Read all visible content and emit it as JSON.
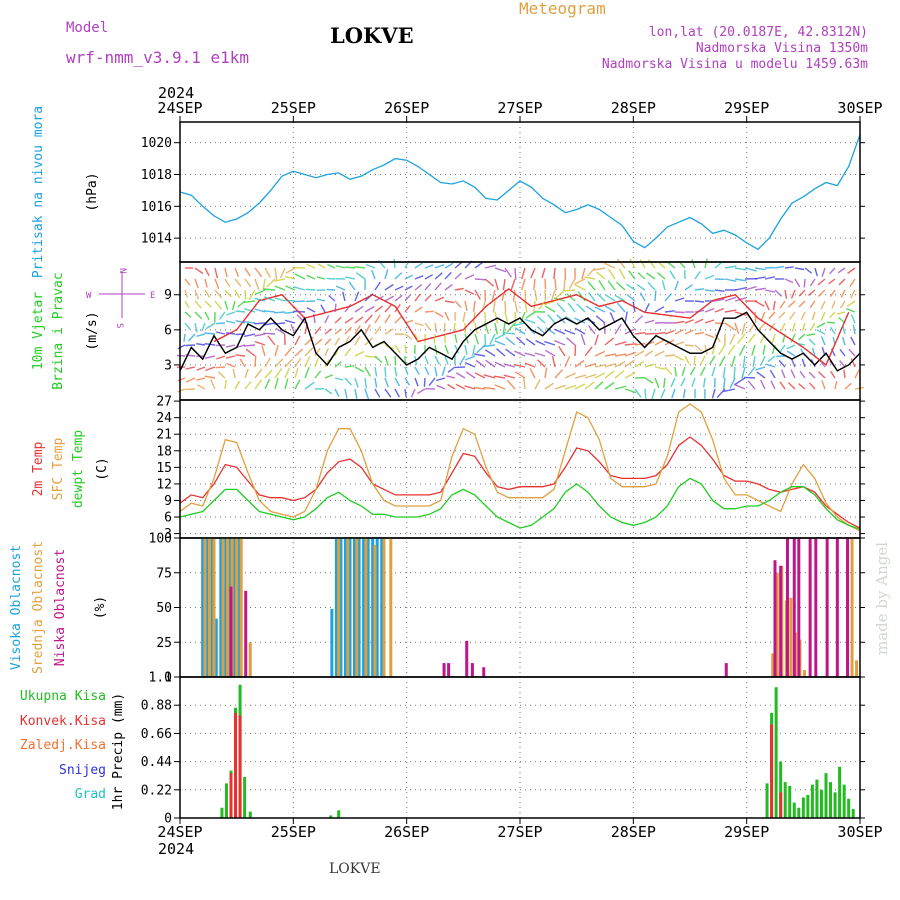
{
  "header": {
    "model_label": "Model",
    "model_name": "wrf-nmm_v3.9.1 e1km",
    "station": "LOKVE",
    "meteogram": "Meteogram",
    "lonlat": "lon,lat (20.0187E, 42.8312N)",
    "elevation": "Nadmorska Visina 1350m",
    "model_elevation": "Nadmorska Visina u modelu 1459.63m",
    "credit": "made by Angel",
    "footer": "LOKVE"
  },
  "colors": {
    "pressure": "#1ca2df",
    "wind_speed": "#000000",
    "wind_gust": "#e83030",
    "t2m": "#e83030",
    "sfc": "#e0a040",
    "dewpt": "#22cc22",
    "high_cloud": "#1ca2df",
    "mid_cloud": "#e0a040",
    "low_cloud": "#c0158a",
    "total_precip": "#22bb22",
    "conv_precip": "#e83030",
    "frz_precip": "#f07030",
    "snow": "#3030e0",
    "hail": "#20c0c0",
    "header_purple": "#b040c0",
    "header_orange": "#e0a040"
  },
  "chart_data": [
    {
      "type": "line",
      "panel": "pressure",
      "ylabel": [
        "Pritisak na nivou mora",
        "(hPa)"
      ],
      "x_axis": {
        "year": "2024",
        "ticks": [
          "24SEP",
          "25SEP",
          "26SEP",
          "27SEP",
          "28SEP",
          "29SEP",
          "30SEP"
        ],
        "x_unit": "days since 24SEP 00Z",
        "xlim": [
          0,
          6
        ]
      },
      "yticks": [
        1014,
        1016,
        1018,
        1020
      ],
      "ylim": [
        1012.5,
        1021.3
      ],
      "grid": true,
      "series": [
        {
          "color_key": "pressure",
          "x": [
            0,
            0.1,
            0.2,
            0.3,
            0.4,
            0.5,
            0.6,
            0.7,
            0.8,
            0.9,
            1.0,
            1.1,
            1.2,
            1.3,
            1.4,
            1.5,
            1.6,
            1.7,
            1.8,
            1.9,
            2.0,
            2.1,
            2.2,
            2.3,
            2.4,
            2.5,
            2.6,
            2.7,
            2.8,
            2.9,
            3.0,
            3.1,
            3.2,
            3.3,
            3.4,
            3.5,
            3.6,
            3.7,
            3.8,
            3.9,
            4.0,
            4.1,
            4.2,
            4.3,
            4.4,
            4.5,
            4.6,
            4.7,
            4.8,
            4.9,
            5.0,
            5.1,
            5.2,
            5.3,
            5.4,
            5.5,
            5.6,
            5.7,
            5.8,
            5.9,
            6.0
          ],
          "y": [
            1016.9,
            1016.7,
            1016.0,
            1015.4,
            1015.0,
            1015.2,
            1015.6,
            1016.2,
            1017.0,
            1017.9,
            1018.2,
            1018.0,
            1017.8,
            1018.0,
            1018.1,
            1017.7,
            1017.9,
            1018.3,
            1018.6,
            1019.0,
            1018.9,
            1018.5,
            1018.0,
            1017.5,
            1017.4,
            1017.6,
            1017.2,
            1016.5,
            1016.4,
            1017.0,
            1017.6,
            1017.2,
            1016.5,
            1016.1,
            1015.6,
            1015.8,
            1016.1,
            1015.8,
            1015.3,
            1014.8,
            1013.8,
            1013.4,
            1014.0,
            1014.7,
            1015.0,
            1015.3,
            1014.9,
            1014.3,
            1014.5,
            1014.2,
            1013.7,
            1013.3,
            1014.0,
            1015.2,
            1016.2,
            1016.6,
            1017.1,
            1017.5,
            1017.3,
            1018.5,
            1020.5
          ]
        }
      ]
    },
    {
      "type": "line",
      "panel": "wind",
      "ylabel": [
        "10m Vjetar",
        "Brzina i Pravac",
        "(m/s)"
      ],
      "compass": {
        "n": "N",
        "s": "S",
        "e": "E",
        "w": "W"
      },
      "yticks": [
        3,
        6,
        9
      ],
      "ylim": [
        0,
        11.8
      ],
      "grid": true,
      "series": [
        {
          "color_key": "wind_speed",
          "x": [
            0,
            0.1,
            0.2,
            0.3,
            0.4,
            0.5,
            0.6,
            0.7,
            0.8,
            0.9,
            1.0,
            1.1,
            1.2,
            1.3,
            1.4,
            1.5,
            1.6,
            1.7,
            1.8,
            1.9,
            2.0,
            2.1,
            2.2,
            2.3,
            2.4,
            2.5,
            2.6,
            2.7,
            2.8,
            2.9,
            3.0,
            3.1,
            3.2,
            3.3,
            3.4,
            3.5,
            3.6,
            3.7,
            3.8,
            3.9,
            4.0,
            4.1,
            4.2,
            4.3,
            4.4,
            4.5,
            4.6,
            4.7,
            4.8,
            4.9,
            5.0,
            5.1,
            5.2,
            5.3,
            5.4,
            5.5,
            5.6,
            5.7,
            5.8,
            5.9,
            6.0
          ],
          "y": [
            2.5,
            4.5,
            3.5,
            5.5,
            4.0,
            4.5,
            6.5,
            6.0,
            7.0,
            6.0,
            5.5,
            7.0,
            4.0,
            3.0,
            4.5,
            5.0,
            6.0,
            4.5,
            5.0,
            4.0,
            3.0,
            3.5,
            4.5,
            4.0,
            3.5,
            5.0,
            6.0,
            6.5,
            7.0,
            6.5,
            7.0,
            6.0,
            5.5,
            6.5,
            7.0,
            6.5,
            7.0,
            6.0,
            6.5,
            7.0,
            5.5,
            4.5,
            5.5,
            5.0,
            4.5,
            4.0,
            4.0,
            4.5,
            7.0,
            7.0,
            7.5,
            6.0,
            5.0,
            4.0,
            3.5,
            4.0,
            3.0,
            4.0,
            2.5,
            3.0,
            4.0
          ]
        },
        {
          "color_key": "wind_gust",
          "x": [
            0.3,
            0.5,
            0.7,
            0.9,
            1.1,
            1.5,
            1.7,
            1.9,
            2.1,
            2.5,
            2.7,
            2.9,
            3.1,
            3.5,
            3.7,
            3.9,
            4.1,
            4.5,
            4.7,
            4.9,
            5.1,
            5.5,
            5.7,
            5.9
          ],
          "y": [
            5.0,
            6.0,
            8.5,
            9.0,
            7.0,
            8.0,
            9.0,
            8.0,
            5.0,
            6.0,
            8.0,
            9.5,
            8.0,
            9.0,
            8.0,
            8.5,
            7.5,
            7.0,
            8.5,
            9.0,
            7.0,
            4.5,
            3.0,
            7.5
          ]
        }
      ]
    },
    {
      "type": "line",
      "panel": "temperature",
      "ylabel": [
        "2m Temp",
        "SFC Temp",
        "dewpt Temp",
        "(C)"
      ],
      "yticks": [
        3,
        6,
        9,
        12,
        15,
        18,
        21,
        24,
        27
      ],
      "ylim": [
        2.2,
        27.2
      ],
      "grid": true,
      "series": [
        {
          "name": "2m Temp",
          "color_key": "t2m",
          "x": [
            0,
            0.1,
            0.2,
            0.3,
            0.4,
            0.5,
            0.6,
            0.7,
            0.8,
            0.9,
            1.0,
            1.1,
            1.2,
            1.3,
            1.4,
            1.5,
            1.6,
            1.7,
            1.8,
            1.9,
            2.0,
            2.1,
            2.2,
            2.3,
            2.4,
            2.5,
            2.6,
            2.7,
            2.8,
            2.9,
            3.0,
            3.1,
            3.2,
            3.3,
            3.4,
            3.5,
            3.6,
            3.7,
            3.8,
            3.9,
            4.0,
            4.1,
            4.2,
            4.3,
            4.4,
            4.5,
            4.6,
            4.7,
            4.8,
            4.9,
            5.0,
            5.1,
            5.2,
            5.3,
            5.4,
            5.5,
            5.6,
            5.7,
            5.8,
            5.9,
            6.0
          ],
          "y": [
            8.5,
            10,
            9.5,
            12,
            15.5,
            15,
            12.5,
            10,
            9.5,
            9.5,
            9,
            9.5,
            11,
            14,
            16,
            16.5,
            15,
            12,
            11,
            10,
            10,
            10,
            10,
            10.5,
            14,
            17.5,
            17,
            14,
            11.5,
            11,
            11.5,
            11.5,
            11.5,
            12,
            15,
            18.5,
            18,
            16,
            13.5,
            13,
            13,
            13,
            13.5,
            15.5,
            19,
            20.5,
            19,
            16.5,
            13.5,
            12.5,
            12.5,
            12,
            11,
            10.5,
            11,
            11.5,
            10.5,
            8,
            6.5,
            5,
            4
          ]
        },
        {
          "name": "SFC Temp",
          "color_key": "sfc",
          "x": [
            0,
            0.1,
            0.2,
            0.3,
            0.4,
            0.5,
            0.6,
            0.7,
            0.8,
            0.9,
            1.0,
            1.1,
            1.2,
            1.3,
            1.4,
            1.5,
            1.6,
            1.7,
            1.8,
            1.9,
            2.0,
            2.1,
            2.2,
            2.3,
            2.4,
            2.5,
            2.6,
            2.7,
            2.8,
            2.9,
            3.0,
            3.1,
            3.2,
            3.3,
            3.4,
            3.5,
            3.6,
            3.7,
            3.8,
            3.9,
            4.0,
            4.1,
            4.2,
            4.3,
            4.4,
            4.5,
            4.6,
            4.7,
            4.8,
            4.9,
            5.0,
            5.1,
            5.2,
            5.3,
            5.4,
            5.5,
            5.6,
            5.7,
            5.8,
            5.9,
            6.0
          ],
          "y": [
            7,
            8.5,
            8,
            13,
            20,
            19.5,
            14,
            9,
            7,
            6.5,
            6,
            7,
            11,
            18,
            22,
            22,
            18,
            12,
            9,
            8,
            8,
            8,
            8,
            9,
            17,
            22,
            21,
            15,
            10.5,
            9.5,
            9.5,
            9.5,
            9.5,
            11,
            18,
            25,
            24,
            20,
            13,
            11.5,
            11.5,
            11.5,
            12,
            17,
            25,
            26.5,
            25,
            20,
            13,
            10,
            10,
            9,
            8,
            7,
            12,
            15.5,
            13,
            8.5,
            6,
            4.5,
            3.5
          ]
        },
        {
          "name": "dewpt Temp",
          "color_key": "dewpt",
          "x": [
            0,
            0.1,
            0.2,
            0.3,
            0.4,
            0.5,
            0.6,
            0.7,
            0.8,
            0.9,
            1.0,
            1.1,
            1.2,
            1.3,
            1.4,
            1.5,
            1.6,
            1.7,
            1.8,
            1.9,
            2.0,
            2.1,
            2.2,
            2.3,
            2.4,
            2.5,
            2.6,
            2.7,
            2.8,
            2.9,
            3.0,
            3.1,
            3.2,
            3.3,
            3.4,
            3.5,
            3.6,
            3.7,
            3.8,
            3.9,
            4.0,
            4.1,
            4.2,
            4.3,
            4.4,
            4.5,
            4.6,
            4.7,
            4.8,
            4.9,
            5.0,
            5.1,
            5.2,
            5.3,
            5.4,
            5.5,
            5.6,
            5.7,
            5.8,
            5.9,
            6.0
          ],
          "y": [
            6,
            6.5,
            7,
            9,
            11,
            11,
            9,
            7,
            6.5,
            6,
            5.5,
            6,
            7.5,
            9.5,
            10.5,
            9,
            8,
            6.5,
            6.5,
            6,
            6,
            6,
            6.5,
            7.5,
            10,
            11,
            10,
            8,
            6,
            5,
            4,
            4.5,
            6,
            7.5,
            10.5,
            12,
            10.5,
            8,
            6,
            5,
            4.5,
            5,
            6,
            8,
            11.5,
            13,
            12,
            9,
            7.5,
            7.5,
            8,
            8,
            9,
            10.5,
            11.5,
            11.5,
            10,
            7.5,
            5.5,
            4.5,
            3.8
          ]
        }
      ]
    },
    {
      "type": "bar",
      "panel": "cloud",
      "ylabel": [
        "Visoka Oblacnost",
        "Srednja Oblacnost",
        "Niska Oblacnost",
        "(%)"
      ],
      "yticks": [
        0,
        25,
        50,
        75,
        100
      ],
      "ylim": [
        0,
        100
      ],
      "grid": true,
      "series": [
        {
          "name": "Visoka Oblacnost",
          "color_key": "high_cloud",
          "x": [
            0.2,
            0.24,
            0.28,
            0.32,
            0.36,
            0.4,
            0.44,
            0.48,
            0.52,
            1.34,
            1.38,
            1.42,
            1.46,
            1.5,
            1.54,
            1.58,
            1.62,
            1.66,
            1.7,
            1.74,
            1.78
          ],
          "values": [
            100,
            100,
            100,
            42,
            100,
            100,
            100,
            100,
            100,
            49,
            100,
            100,
            100,
            100,
            100,
            100,
            100,
            100,
            100,
            100,
            100
          ]
        },
        {
          "name": "Srednja Oblacnost",
          "color_key": "mid_cloud",
          "x": [
            0.22,
            0.26,
            0.3,
            0.38,
            0.42,
            0.46,
            0.5,
            0.54,
            0.62,
            1.4,
            1.48,
            1.56,
            1.64,
            1.72,
            1.8,
            1.86,
            5.23,
            5.27,
            5.31,
            5.35,
            5.39,
            5.43,
            5.47,
            5.51,
            5.93,
            5.97
          ],
          "values": [
            100,
            100,
            100,
            100,
            100,
            100,
            100,
            100,
            25,
            100,
            100,
            100,
            100,
            95,
            100,
            100,
            17,
            75,
            80,
            55,
            57,
            32,
            27,
            5,
            100,
            12
          ]
        },
        {
          "name": "Niska Oblacnost",
          "color_key": "low_cloud",
          "x": [
            0.45,
            0.58,
            2.33,
            2.37,
            2.53,
            2.58,
            2.68,
            4.82,
            5.25,
            5.3,
            5.36,
            5.42,
            5.46,
            5.56,
            5.61,
            5.71,
            5.8,
            5.89
          ],
          "values": [
            65,
            62,
            10,
            10,
            26,
            10,
            7,
            10,
            84,
            80,
            100,
            100,
            100,
            100,
            100,
            100,
            100,
            100
          ]
        }
      ]
    },
    {
      "type": "bar",
      "panel": "precip",
      "ylabel": [
        "1hr Precip (mm)"
      ],
      "legend": [
        "Ukupna Kisa",
        "Konvek.Kisa",
        "Zaledj.Kisa",
        "Snijeg",
        "Grad"
      ],
      "yticks": [
        0,
        0.22,
        0.44,
        0.66,
        0.88,
        1.1
      ],
      "ylim": [
        0,
        1.1
      ],
      "grid": true,
      "series": [
        {
          "name": "Ukupna Kisa",
          "color_key": "total_precip",
          "x": [
            0.37,
            0.41,
            0.45,
            0.49,
            0.53,
            0.57,
            0.62,
            1.33,
            1.4,
            5.18,
            5.22,
            5.26,
            5.3,
            5.34,
            5.38,
            5.42,
            5.46,
            5.5,
            5.54,
            5.58,
            5.62,
            5.66,
            5.7,
            5.74,
            5.78,
            5.82,
            5.86,
            5.9,
            5.94
          ],
          "values": [
            0.08,
            0.27,
            0.37,
            0.86,
            1.04,
            0.32,
            0.05,
            0.02,
            0.06,
            0.27,
            0.82,
            1.02,
            0.44,
            0.28,
            0.25,
            0.12,
            0.08,
            0.16,
            0.18,
            0.26,
            0.3,
            0.22,
            0.35,
            0.28,
            0.2,
            0.4,
            0.26,
            0.15,
            0.07
          ]
        },
        {
          "name": "Konvek.Kisa",
          "color_key": "conv_precip",
          "x": [
            0.45,
            0.49,
            0.53,
            5.22,
            5.3
          ],
          "values": [
            0.35,
            0.82,
            0.8,
            0.73,
            0.2
          ]
        }
      ]
    }
  ]
}
